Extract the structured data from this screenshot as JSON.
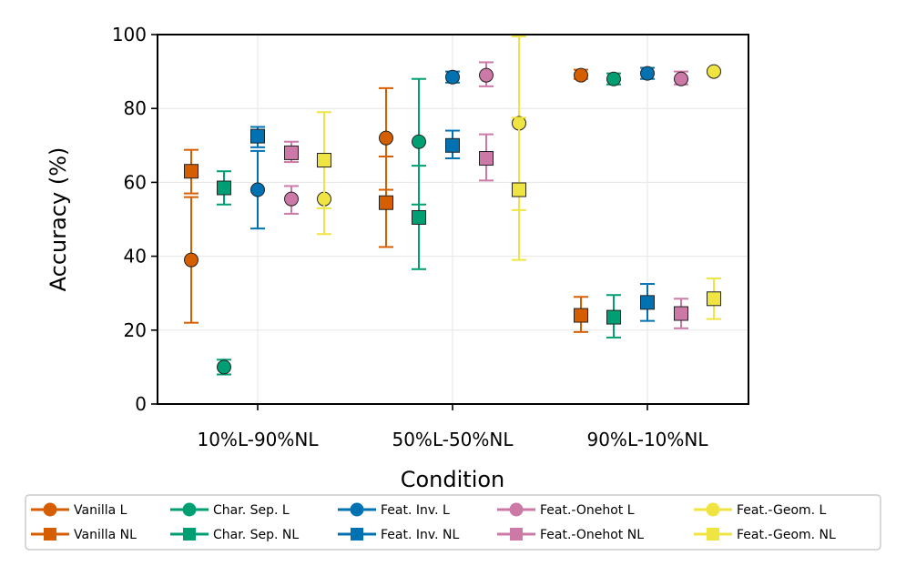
{
  "chart_data": {
    "type": "scatter",
    "title": "",
    "xlabel": "Condition",
    "ylabel": "Accuracy (%)",
    "categories": [
      "10%L-90%NL",
      "50%L-50%NL",
      "90%L-10%NL"
    ],
    "ylim": [
      0,
      100
    ],
    "yticks": [
      0,
      20,
      40,
      60,
      80,
      100
    ],
    "grid": true,
    "legend_position": "bottom",
    "series": [
      {
        "name": "Vanilla L",
        "marker": "circle",
        "color": "#D55E00",
        "values": [
          39,
          72,
          89
        ],
        "err_low": [
          22,
          58,
          88
        ],
        "err_high": [
          56,
          85.5,
          90.5
        ]
      },
      {
        "name": "Vanilla NL",
        "marker": "square",
        "color": "#D55E00",
        "values": [
          63,
          54.5,
          24
        ],
        "err_low": [
          57,
          42.5,
          19.5
        ],
        "err_high": [
          68.8,
          67,
          29
        ]
      },
      {
        "name": "Char. Sep. L",
        "marker": "circle",
        "color": "#009E73",
        "values": [
          10,
          71,
          88
        ],
        "err_low": [
          8,
          54,
          86.5
        ],
        "err_high": [
          12,
          88,
          89.5
        ]
      },
      {
        "name": "Char. Sep. NL",
        "marker": "square",
        "color": "#009E73",
        "values": [
          58.5,
          50.5,
          23.5
        ],
        "err_low": [
          54,
          36.5,
          18
        ],
        "err_high": [
          63,
          64.5,
          29.5
        ]
      },
      {
        "name": "Feat. Inv. L",
        "marker": "circle",
        "color": "#0072B2",
        "values": [
          58,
          88.5,
          89.5
        ],
        "err_low": [
          47.5,
          87,
          88
        ],
        "err_high": [
          68.5,
          90,
          91
        ]
      },
      {
        "name": "Feat. Inv. NL",
        "marker": "square",
        "color": "#0072B2",
        "values": [
          72.5,
          70,
          27.5
        ],
        "err_low": [
          69.5,
          66.5,
          22.5
        ],
        "err_high": [
          75,
          74,
          32.5
        ]
      },
      {
        "name": "Feat.-Onehot L",
        "marker": "circle",
        "color": "#CC79A7",
        "values": [
          55.5,
          89,
          88
        ],
        "err_low": [
          51.5,
          86,
          86.5
        ],
        "err_high": [
          59,
          92.5,
          90
        ]
      },
      {
        "name": "Feat.-Onehot NL",
        "marker": "square",
        "color": "#CC79A7",
        "values": [
          68,
          66.5,
          24.5
        ],
        "err_low": [
          65.5,
          60.5,
          20.5
        ],
        "err_high": [
          71,
          73,
          28.5
        ]
      },
      {
        "name": "Feat.-Geom. L",
        "marker": "circle",
        "color": "#F0E442",
        "values": [
          55.5,
          76,
          90
        ],
        "err_low": [
          46,
          52.5,
          89.5
        ],
        "err_high": [
          65.5,
          99.5,
          90.5
        ]
      },
      {
        "name": "Feat.-Geom. NL",
        "marker": "square",
        "color": "#F0E442",
        "values": [
          66,
          58,
          28.5
        ],
        "err_low": [
          53,
          39,
          23
        ],
        "err_high": [
          79,
          77.5,
          34
        ]
      }
    ]
  }
}
